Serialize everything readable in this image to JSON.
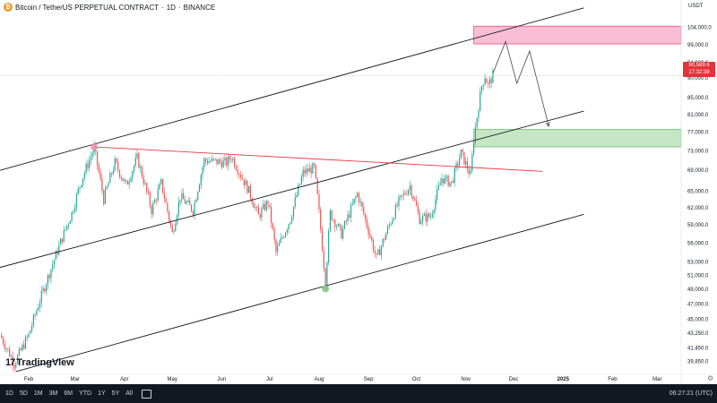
{
  "header": {
    "icon_letter": "₿",
    "symbol": "Bitcoin / TetherUS PERPETUAL CONTRACT",
    "interval": "1D",
    "exchange": "BINANCE",
    "separator": "·"
  },
  "currency": "USDT",
  "last_price": {
    "price": "90,589.6",
    "countdown": "17:32:38",
    "color": "#e5313a"
  },
  "watermark": "TradingView",
  "toolbar": {
    "timeframes": [
      "1D",
      "5D",
      "1M",
      "3M",
      "6M",
      "YTD",
      "1Y",
      "5Y",
      "All"
    ],
    "clock": "06:27:21 (UTC)"
  },
  "colors": {
    "up": "#26a69a",
    "down": "#ef5350",
    "trendline": "#f23645",
    "channel": "#131722",
    "supply_zone": "#f7a8c4",
    "demand_zone": "#b2dfb0"
  },
  "chart_data": {
    "type": "candlestick",
    "title": "Bitcoin / TetherUS PERPETUAL CONTRACT · 1D · BINANCE",
    "y_scale": "log",
    "ylim": [
      38500,
      108000
    ],
    "x_start": "2024-01-14",
    "x_end": "2025-03-16",
    "y_ticks": [
      "104,000.0",
      "99,000.0",
      "94,000.0",
      "90,000.0",
      "85,000.0",
      "81,000.0",
      "77,000.0",
      "73,000.0",
      "69,000.0",
      "65,000.0",
      "62,000.0",
      "59,000.0",
      "56,000.0",
      "53,000.0",
      "51,000.0",
      "49,000.0",
      "47,000.0",
      "45,000.0",
      "43,250.0",
      "41,450.0",
      "39,850.0"
    ],
    "x_ticks": [
      {
        "label": "Feb",
        "date": "2024-02-01"
      },
      {
        "label": "Mar",
        "date": "2024-03-01"
      },
      {
        "label": "Apr",
        "date": "2024-04-01"
      },
      {
        "label": "May",
        "date": "2024-05-01"
      },
      {
        "label": "Jun",
        "date": "2024-06-01"
      },
      {
        "label": "Jul",
        "date": "2024-07-01"
      },
      {
        "label": "Aug",
        "date": "2024-08-01"
      },
      {
        "label": "Sep",
        "date": "2024-09-01"
      },
      {
        "label": "Oct",
        "date": "2024-10-01"
      },
      {
        "label": "Nov",
        "date": "2024-11-01"
      },
      {
        "label": "Dec",
        "date": "2024-12-01"
      },
      {
        "label": "2025",
        "date": "2025-01-01"
      },
      {
        "label": "Feb",
        "date": "2025-02-01"
      },
      {
        "label": "Mar",
        "date": "2025-03-01"
      }
    ],
    "price_path": [
      [
        "2024-01-14",
        43000
      ],
      [
        "2024-01-23",
        39600
      ],
      [
        "2024-02-01",
        43000
      ],
      [
        "2024-02-15",
        52000
      ],
      [
        "2024-02-28",
        61000
      ],
      [
        "2024-03-05",
        67000
      ],
      [
        "2024-03-13",
        73500
      ],
      [
        "2024-03-19",
        63500
      ],
      [
        "2024-03-26",
        70500
      ],
      [
        "2024-04-02",
        66000
      ],
      [
        "2024-04-09",
        71500
      ],
      [
        "2024-04-18",
        61500
      ],
      [
        "2024-04-24",
        66500
      ],
      [
        "2024-05-01",
        57500
      ],
      [
        "2024-05-06",
        64000
      ],
      [
        "2024-05-14",
        61500
      ],
      [
        "2024-05-21",
        71000
      ],
      [
        "2024-06-04",
        70500
      ],
      [
        "2024-06-07",
        71800
      ],
      [
        "2024-06-18",
        65000
      ],
      [
        "2024-06-24",
        60500
      ],
      [
        "2024-06-30",
        63000
      ],
      [
        "2024-07-05",
        54500
      ],
      [
        "2024-07-14",
        60000
      ],
      [
        "2024-07-22",
        68500
      ],
      [
        "2024-07-29",
        69500
      ],
      [
        "2024-08-05",
        49800
      ],
      [
        "2024-08-08",
        61000
      ],
      [
        "2024-08-15",
        57500
      ],
      [
        "2024-08-25",
        64500
      ],
      [
        "2024-09-06",
        53500
      ],
      [
        "2024-09-20",
        63000
      ],
      [
        "2024-09-27",
        66000
      ],
      [
        "2024-10-03",
        60000
      ],
      [
        "2024-10-10",
        60500
      ],
      [
        "2024-10-17",
        67500
      ],
      [
        "2024-10-23",
        66500
      ],
      [
        "2024-10-29",
        72500
      ],
      [
        "2024-11-04",
        68000
      ],
      [
        "2024-11-06",
        75500
      ],
      [
        "2024-11-11",
        88000
      ],
      [
        "2024-11-13",
        90500
      ],
      [
        "2024-11-15",
        88000
      ],
      [
        "2024-11-18",
        90589.6
      ]
    ],
    "resistance_line": {
      "from": [
        "2024-03-13",
        73800
      ],
      "to": [
        "2024-12-19",
        68800
      ],
      "color": "#f23645"
    },
    "touch_points": [
      {
        "date": "2024-03-13",
        "price": 73800,
        "color": "#f48fb1"
      },
      {
        "date": "2024-08-05",
        "price": 49100,
        "color": "#81c784"
      }
    ],
    "channel_lines": [
      {
        "name": "upper",
        "from": [
          "2024-01-14",
          69000
        ],
        "to": [
          "2025-01-14",
          110000
        ]
      },
      {
        "name": "middle",
        "from": [
          "2024-01-14",
          52200
        ],
        "to": [
          "2025-01-14",
          81800
        ]
      },
      {
        "name": "lower",
        "from": [
          "2024-01-24",
          38700
        ],
        "to": [
          "2025-01-14",
          60800
        ]
      }
    ],
    "zones": [
      {
        "name": "supply",
        "date_from": "2024-11-06",
        "date_to": "2025-03-16",
        "low": 99200,
        "high": 104400
      },
      {
        "name": "demand",
        "date_from": "2024-11-06",
        "date_to": "2025-03-16",
        "low": 73800,
        "high": 77600
      }
    ],
    "projection": [
      [
        "2024-11-18",
        91200
      ],
      [
        "2024-11-26",
        99900
      ],
      [
        "2024-12-03",
        88600
      ],
      [
        "2024-12-11",
        97200
      ],
      [
        "2024-12-23",
        78300
      ]
    ]
  }
}
